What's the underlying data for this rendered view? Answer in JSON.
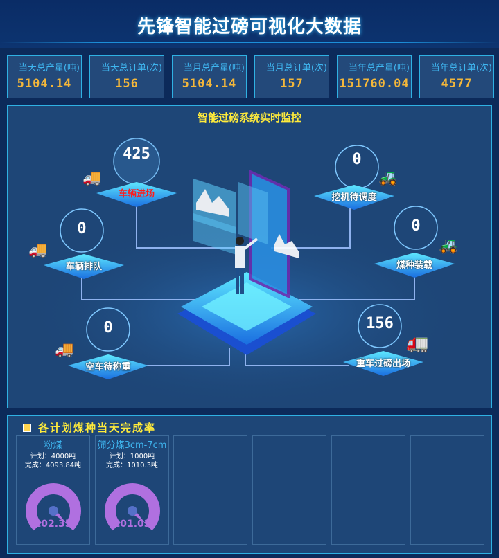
{
  "header": {
    "title": "先锋智能过磅可视化大数据"
  },
  "stats": [
    {
      "label": "当天总产量(吨)",
      "value": "5104.14"
    },
    {
      "label": "当天总订单(次)",
      "value": "156"
    },
    {
      "label": "当月总产量(吨)",
      "value": "5104.14"
    },
    {
      "label": "当月总订单(次)",
      "value": "157"
    },
    {
      "label": "当年总产量(吨)",
      "value": "151760.04"
    },
    {
      "label": "当年总订单(次)",
      "value": "4577"
    }
  ],
  "monitor": {
    "title": "智能过磅系统实时监控",
    "nodes": [
      {
        "label": "车辆进场",
        "value": "425",
        "icon": "truck-icon",
        "highlight_color": "#ff1a1a"
      },
      {
        "label": "挖机待调度",
        "value": "0",
        "icon": "excavator-icon"
      },
      {
        "label": "车辆排队",
        "value": "0",
        "icon": "truck-icon"
      },
      {
        "label": "煤种装载",
        "value": "0",
        "icon": "excavator-icon"
      },
      {
        "label": "空车待称重",
        "value": "0",
        "icon": "truck-icon"
      },
      {
        "label": "重车过磅出场",
        "value": "156",
        "icon": "loaded-truck-icon"
      }
    ]
  },
  "completion": {
    "title": "各计划煤种当天完成率",
    "cards": [
      {
        "name": "粉煤",
        "plan": "计划：4000吨",
        "done": "完成：4093.84吨",
        "rate": "102.35"
      },
      {
        "name": "筛分煤3cm-7cm",
        "plan": "计划：1000吨",
        "done": "完成：1010.3吨",
        "rate": "101.03"
      },
      {},
      {},
      {},
      {}
    ],
    "gauge_color": "#b070e0"
  }
}
